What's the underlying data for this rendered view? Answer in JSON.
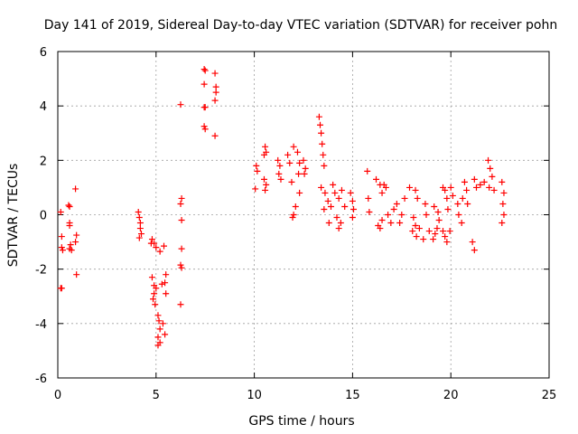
{
  "chart_data": {
    "type": "scatter",
    "title": "Day 141 of 2019, Sidereal Day-to-day VTEC variation (SDTVAR) for receiver pohn",
    "xlabel": "GPS time / hours",
    "ylabel": "SDTVAR / TECUs",
    "xlim": [
      0,
      25
    ],
    "ylim": [
      -6,
      6
    ],
    "xticks": [
      0,
      5,
      10,
      15,
      20,
      25
    ],
    "yticks": [
      -6,
      -4,
      -2,
      0,
      2,
      4,
      6
    ],
    "xtick_labels": [
      "0",
      "5",
      "10",
      "15",
      "20",
      "25"
    ],
    "ytick_labels": [
      "-6",
      "-4",
      "-2",
      "0",
      "2",
      "4",
      "6"
    ],
    "grid": true,
    "marker": "+",
    "color": "#ff0000",
    "series": [
      {
        "name": "pohn",
        "points": [
          [
            0.15,
            0.1
          ],
          [
            0.2,
            -0.8
          ],
          [
            0.2,
            -1.2
          ],
          [
            0.25,
            -1.3
          ],
          [
            0.15,
            -2.7
          ],
          [
            0.2,
            -2.7
          ],
          [
            0.55,
            0.35
          ],
          [
            0.6,
            0.3
          ],
          [
            0.6,
            -0.3
          ],
          [
            0.6,
            -0.4
          ],
          [
            0.65,
            -1.1
          ],
          [
            0.6,
            -1.25
          ],
          [
            0.7,
            -1.3
          ],
          [
            0.9,
            0.95
          ],
          [
            0.95,
            -0.75
          ],
          [
            0.9,
            -1.0
          ],
          [
            0.95,
            -2.2
          ],
          [
            4.1,
            0.1
          ],
          [
            4.15,
            -0.1
          ],
          [
            4.2,
            -0.3
          ],
          [
            4.2,
            -0.5
          ],
          [
            4.25,
            -0.7
          ],
          [
            4.15,
            -0.85
          ],
          [
            4.8,
            -0.9
          ],
          [
            4.9,
            -1.05
          ],
          [
            5.0,
            -1.2
          ],
          [
            5.2,
            -1.35
          ],
          [
            5.4,
            -1.15
          ],
          [
            4.75,
            -1.05
          ],
          [
            4.8,
            -2.3
          ],
          [
            4.9,
            -2.6
          ],
          [
            4.9,
            -2.9
          ],
          [
            4.85,
            -3.1
          ],
          [
            4.95,
            -3.3
          ],
          [
            5.0,
            -2.7
          ],
          [
            5.1,
            -3.7
          ],
          [
            5.15,
            -3.9
          ],
          [
            5.2,
            -4.2
          ],
          [
            5.1,
            -4.5
          ],
          [
            5.2,
            -4.7
          ],
          [
            5.1,
            -4.8
          ],
          [
            5.3,
            -2.55
          ],
          [
            5.5,
            -2.2
          ],
          [
            5.45,
            -2.5
          ],
          [
            5.5,
            -2.9
          ],
          [
            5.35,
            -4.0
          ],
          [
            5.45,
            -4.4
          ],
          [
            6.25,
            4.05
          ],
          [
            6.3,
            0.6
          ],
          [
            6.25,
            0.4
          ],
          [
            6.3,
            -0.2
          ],
          [
            6.3,
            -1.25
          ],
          [
            6.25,
            -1.85
          ],
          [
            6.3,
            -1.95
          ],
          [
            6.25,
            -3.3
          ],
          [
            7.45,
            5.35
          ],
          [
            7.5,
            5.3
          ],
          [
            7.45,
            4.8
          ],
          [
            7.45,
            3.95
          ],
          [
            7.5,
            3.95
          ],
          [
            7.45,
            3.25
          ],
          [
            7.5,
            3.15
          ],
          [
            8.0,
            5.2
          ],
          [
            8.05,
            4.7
          ],
          [
            8.05,
            4.5
          ],
          [
            8.0,
            4.2
          ],
          [
            8.0,
            2.9
          ],
          [
            10.05,
            0.95
          ],
          [
            10.1,
            1.8
          ],
          [
            10.15,
            1.6
          ],
          [
            10.5,
            2.2
          ],
          [
            10.55,
            2.5
          ],
          [
            10.6,
            2.3
          ],
          [
            10.5,
            1.3
          ],
          [
            10.6,
            1.1
          ],
          [
            10.55,
            0.9
          ],
          [
            11.2,
            2.0
          ],
          [
            11.3,
            1.8
          ],
          [
            11.25,
            1.5
          ],
          [
            11.35,
            1.3
          ],
          [
            11.7,
            2.2
          ],
          [
            11.8,
            1.9
          ],
          [
            11.9,
            1.2
          ],
          [
            12.0,
            2.5
          ],
          [
            12.2,
            2.3
          ],
          [
            12.3,
            1.9
          ],
          [
            12.25,
            1.5
          ],
          [
            12.3,
            0.8
          ],
          [
            12.0,
            0.0
          ],
          [
            11.95,
            -0.1
          ],
          [
            12.1,
            0.3
          ],
          [
            12.5,
            2.0
          ],
          [
            12.6,
            1.7
          ],
          [
            12.55,
            1.5
          ],
          [
            13.3,
            3.6
          ],
          [
            13.35,
            3.3
          ],
          [
            13.4,
            3.0
          ],
          [
            13.45,
            2.6
          ],
          [
            13.5,
            2.2
          ],
          [
            13.55,
            1.8
          ],
          [
            13.4,
            1.0
          ],
          [
            13.6,
            0.8
          ],
          [
            13.75,
            0.5
          ],
          [
            13.9,
            0.3
          ],
          [
            13.8,
            -0.3
          ],
          [
            13.55,
            0.2
          ],
          [
            14.0,
            1.1
          ],
          [
            14.1,
            0.8
          ],
          [
            14.3,
            0.6
          ],
          [
            14.45,
            0.9
          ],
          [
            14.2,
            -0.1
          ],
          [
            14.4,
            -0.3
          ],
          [
            14.3,
            -0.5
          ],
          [
            14.6,
            0.3
          ],
          [
            14.9,
            0.8
          ],
          [
            15.0,
            0.5
          ],
          [
            15.05,
            0.2
          ],
          [
            15.0,
            -0.1
          ],
          [
            15.75,
            1.6
          ],
          [
            15.8,
            0.6
          ],
          [
            15.85,
            0.1
          ],
          [
            16.2,
            1.3
          ],
          [
            16.4,
            1.1
          ],
          [
            16.5,
            0.8
          ],
          [
            16.6,
            1.1
          ],
          [
            16.7,
            1.0
          ],
          [
            16.3,
            -0.4
          ],
          [
            16.4,
            -0.5
          ],
          [
            16.5,
            -0.2
          ],
          [
            16.8,
            0.0
          ],
          [
            16.95,
            -0.3
          ],
          [
            17.1,
            0.2
          ],
          [
            17.25,
            0.4
          ],
          [
            17.5,
            0.0
          ],
          [
            17.4,
            -0.3
          ],
          [
            17.65,
            0.6
          ],
          [
            17.9,
            1.0
          ],
          [
            18.2,
            0.9
          ],
          [
            18.3,
            0.6
          ],
          [
            18.1,
            -0.1
          ],
          [
            18.2,
            -0.4
          ],
          [
            18.05,
            -0.6
          ],
          [
            18.25,
            -0.8
          ],
          [
            18.4,
            -0.5
          ],
          [
            18.6,
            -0.9
          ],
          [
            18.7,
            0.4
          ],
          [
            18.75,
            0.0
          ],
          [
            18.9,
            -0.6
          ],
          [
            19.1,
            -0.9
          ],
          [
            19.2,
            -0.7
          ],
          [
            19.3,
            -0.5
          ],
          [
            19.15,
            0.3
          ],
          [
            19.35,
            0.1
          ],
          [
            19.4,
            -0.2
          ],
          [
            19.6,
            1.0
          ],
          [
            19.7,
            0.9
          ],
          [
            19.8,
            0.6
          ],
          [
            19.85,
            0.2
          ],
          [
            19.6,
            -0.6
          ],
          [
            19.7,
            -0.8
          ],
          [
            19.8,
            -1.0
          ],
          [
            19.95,
            -0.6
          ],
          [
            20.0,
            1.0
          ],
          [
            20.1,
            0.7
          ],
          [
            20.35,
            0.4
          ],
          [
            20.4,
            0.0
          ],
          [
            20.55,
            -0.3
          ],
          [
            20.6,
            0.6
          ],
          [
            20.7,
            1.2
          ],
          [
            20.8,
            0.9
          ],
          [
            20.85,
            0.4
          ],
          [
            21.1,
            -1.0
          ],
          [
            21.2,
            -1.3
          ],
          [
            21.2,
            1.3
          ],
          [
            21.3,
            1.0
          ],
          [
            21.5,
            1.1
          ],
          [
            21.7,
            1.2
          ],
          [
            21.9,
            2.0
          ],
          [
            22.0,
            1.7
          ],
          [
            22.1,
            1.4
          ],
          [
            21.95,
            1.0
          ],
          [
            22.2,
            0.9
          ],
          [
            22.6,
            1.2
          ],
          [
            22.7,
            0.8
          ],
          [
            22.65,
            0.4
          ],
          [
            22.7,
            0.0
          ],
          [
            22.6,
            -0.3
          ]
        ]
      }
    ]
  }
}
